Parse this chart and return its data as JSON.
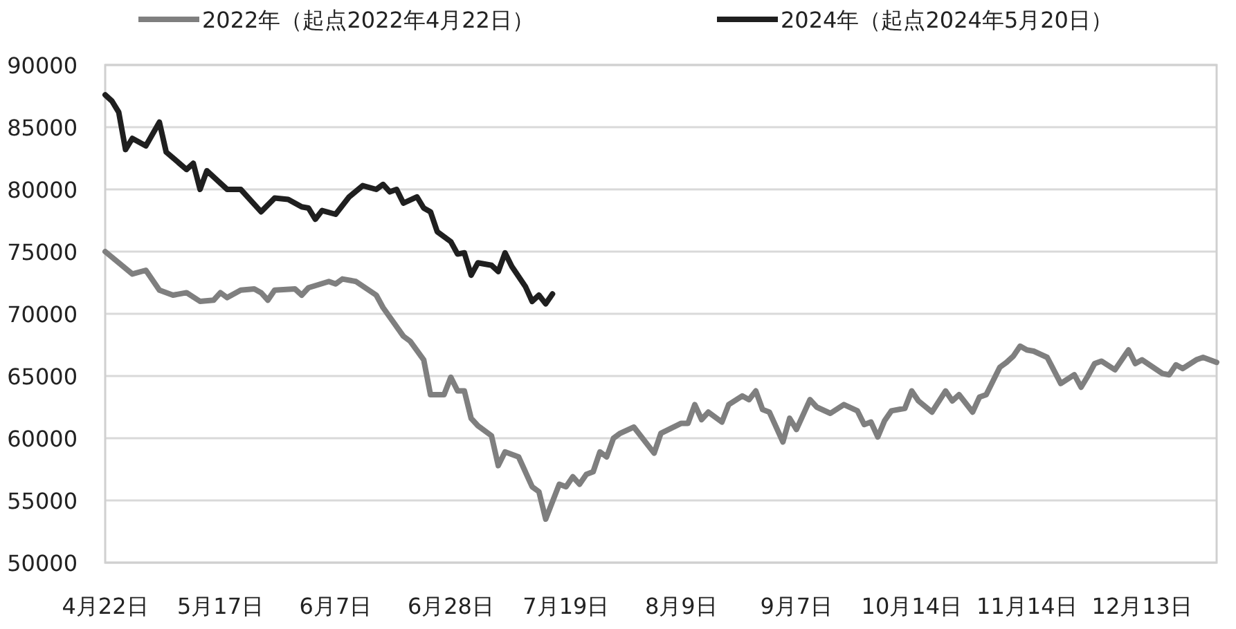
{
  "chart_data": {
    "type": "line",
    "legend": "top",
    "grid": "y",
    "ylim": [
      50000,
      90000
    ],
    "yticks": [
      50000,
      55000,
      60000,
      65000,
      70000,
      75000,
      80000,
      85000,
      90000
    ],
    "categories": [
      "4月22日",
      null,
      null,
      null,
      null,
      null,
      null,
      null,
      null,
      null,
      null,
      null,
      null,
      null,
      null,
      null,
      null,
      "5月17日",
      null,
      null,
      null,
      null,
      null,
      null,
      null,
      null,
      null,
      null,
      null,
      null,
      null,
      null,
      null,
      null,
      "6月7日",
      null,
      null,
      null,
      null,
      null,
      null,
      null,
      null,
      null,
      null,
      null,
      null,
      null,
      null,
      null,
      null,
      "6月28日",
      null,
      null,
      null,
      null,
      null,
      null,
      null,
      null,
      null,
      null,
      null,
      null,
      null,
      null,
      null,
      null,
      "7月19日",
      null,
      null,
      null,
      null,
      null,
      null,
      null,
      null,
      null,
      null,
      null,
      null,
      null,
      null,
      null,
      null,
      "8月9日",
      null,
      null,
      null,
      null,
      null,
      null,
      null,
      null,
      null,
      null,
      null,
      null,
      null,
      null,
      null,
      null,
      "9月7日",
      null,
      null,
      null,
      null,
      null,
      null,
      null,
      null,
      null,
      null,
      null,
      null,
      null,
      null,
      null,
      null,
      "10月14日",
      null,
      null,
      null,
      null,
      null,
      null,
      null,
      null,
      null,
      null,
      null,
      null,
      null,
      null,
      null,
      null,
      "11月14日",
      null,
      null,
      null,
      null,
      null,
      null,
      null,
      null,
      null,
      null,
      null,
      null,
      null,
      null,
      null,
      null,
      "12月13日",
      null,
      null,
      null,
      null,
      null,
      null,
      null,
      null,
      null,
      null,
      null
    ],
    "series": [
      {
        "name": "2022年（起点2022年4月22日）",
        "color": "#7f7f7f",
        "values": [
          75000,
          null,
          null,
          null,
          73200,
          null,
          73500,
          null,
          71900,
          null,
          71500,
          null,
          71700,
          null,
          71000,
          null,
          71100,
          71700,
          71300,
          null,
          71900,
          null,
          72000,
          71700,
          71100,
          71900,
          null,
          null,
          72000,
          71500,
          72100,
          null,
          null,
          72600,
          72400,
          72800,
          null,
          72600,
          null,
          null,
          71500,
          70500,
          null,
          null,
          68200,
          67800,
          null,
          66300,
          63500,
          null,
          63500,
          64900,
          63800,
          63800,
          61600,
          61000,
          null,
          60200,
          57800,
          58900,
          null,
          58500,
          null,
          56100,
          55700,
          53500,
          null,
          56300,
          56100,
          56900,
          56300,
          57100,
          57300,
          58900,
          58500,
          60000,
          60400,
          null,
          60900,
          null,
          null,
          58800,
          60400,
          null,
          null,
          61200,
          61200,
          62700,
          61500,
          62100,
          null,
          61300,
          62700,
          null,
          63400,
          63100,
          63800,
          62300,
          62100,
          null,
          59700,
          61600,
          60700,
          null,
          63100,
          62500,
          null,
          62000,
          null,
          62700,
          null,
          62200,
          61100,
          61300,
          60100,
          61400,
          62200,
          null,
          62400,
          63800,
          63000,
          null,
          62100,
          null,
          63800,
          63000,
          63500,
          null,
          62100,
          63300,
          63500,
          64600,
          65700,
          66100,
          66600,
          67400,
          67100,
          67000,
          null,
          66500,
          null,
          64400,
          null,
          65100,
          64100,
          65000,
          66000,
          66200,
          null,
          65500,
          null,
          67100,
          66000,
          66300,
          null,
          null,
          65200,
          65100,
          65900,
          65600,
          null,
          66300,
          66500,
          null,
          66100
        ]
      },
      {
        "name": "2024年（起点2024年5月20日）",
        "color": "#1f1f1f",
        "values": [
          87600,
          87100,
          86200,
          83200,
          84100,
          null,
          83500,
          null,
          85400,
          83000,
          null,
          null,
          81600,
          82100,
          80000,
          81500,
          null,
          null,
          80000,
          null,
          80000,
          null,
          null,
          78200,
          null,
          79300,
          null,
          79200,
          null,
          78600,
          78500,
          77600,
          78300,
          null,
          78000,
          null,
          79400,
          null,
          80300,
          null,
          80000,
          80400,
          79800,
          80000,
          78900,
          null,
          79400,
          78500,
          78200,
          76600,
          null,
          75800,
          74800,
          74900,
          73100,
          74100,
          null,
          73900,
          73400,
          74900,
          73800,
          null,
          72200,
          71000,
          71500,
          70800,
          71600,
          null,
          null,
          null,
          null,
          null,
          null,
          null,
          null,
          null,
          null,
          null,
          null,
          null,
          null,
          null,
          null,
          null,
          null,
          null,
          null,
          null,
          null,
          null,
          null,
          null,
          null,
          null,
          null,
          null,
          null,
          null,
          null,
          null,
          null,
          null,
          null,
          null,
          null,
          null,
          null,
          null,
          null,
          null,
          null,
          null,
          null,
          null,
          null,
          null,
          null,
          null,
          null,
          null,
          null,
          null,
          null,
          null,
          null,
          null,
          null,
          null,
          null,
          null,
          null,
          null,
          null,
          null,
          null,
          null,
          null,
          null,
          null,
          null,
          null,
          null,
          null,
          null,
          null,
          null,
          null,
          null,
          null,
          null,
          null,
          null,
          null,
          null,
          null,
          null,
          null,
          null,
          null,
          null,
          null,
          null,
          null,
          null,
          null
        ]
      }
    ]
  }
}
